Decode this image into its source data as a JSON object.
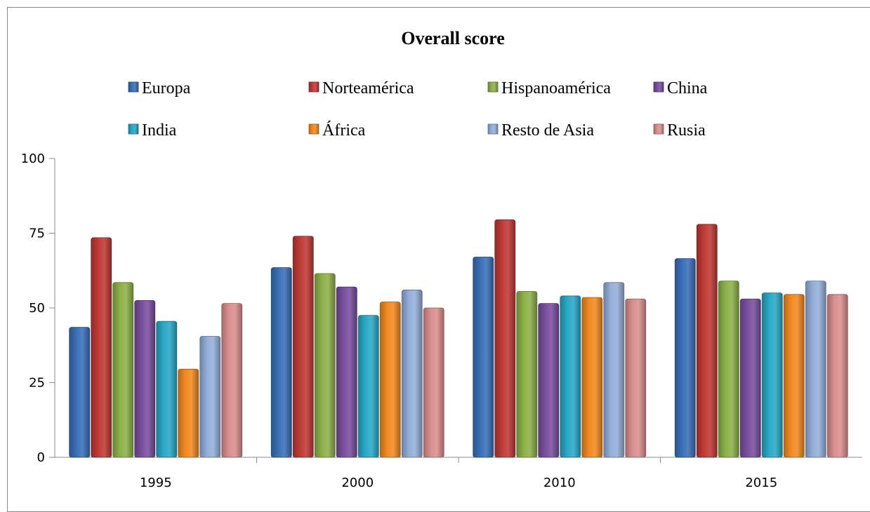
{
  "chart_data": {
    "type": "bar",
    "title": "Overall  score",
    "xlabel": "",
    "ylabel": "",
    "ylim": [
      0,
      100
    ],
    "yticks": [
      "0",
      "25",
      "50",
      "75",
      "100"
    ],
    "categories": [
      "1995",
      "2000",
      "2010",
      "2015"
    ],
    "legend_position": "top",
    "grid": false,
    "series": [
      {
        "name": "Europa",
        "color": "#3a70b8",
        "values": [
          43.5,
          63.5,
          67,
          66.5
        ]
      },
      {
        "name": "Norteamérica",
        "color": "#c03a36",
        "values": [
          73.5,
          74,
          79.5,
          78
        ]
      },
      {
        "name": "Hispanoamérica",
        "color": "#8db14a",
        "values": [
          58.5,
          61.5,
          55.5,
          59
        ]
      },
      {
        "name": "China",
        "color": "#7a4fa0",
        "values": [
          52.5,
          57,
          51.5,
          53
        ]
      },
      {
        "name": "India",
        "color": "#2aa9c7",
        "values": [
          45.5,
          47.5,
          54,
          55
        ]
      },
      {
        "name": "África",
        "color": "#f28a22",
        "values": [
          29.5,
          52,
          53.5,
          54.5
        ]
      },
      {
        "name": "Resto de Asia",
        "color": "#94afd9",
        "values": [
          40.5,
          56,
          58.5,
          59
        ]
      },
      {
        "name": "Rusia",
        "color": "#d9908e",
        "values": [
          51.5,
          50,
          53,
          54.5
        ]
      }
    ]
  }
}
